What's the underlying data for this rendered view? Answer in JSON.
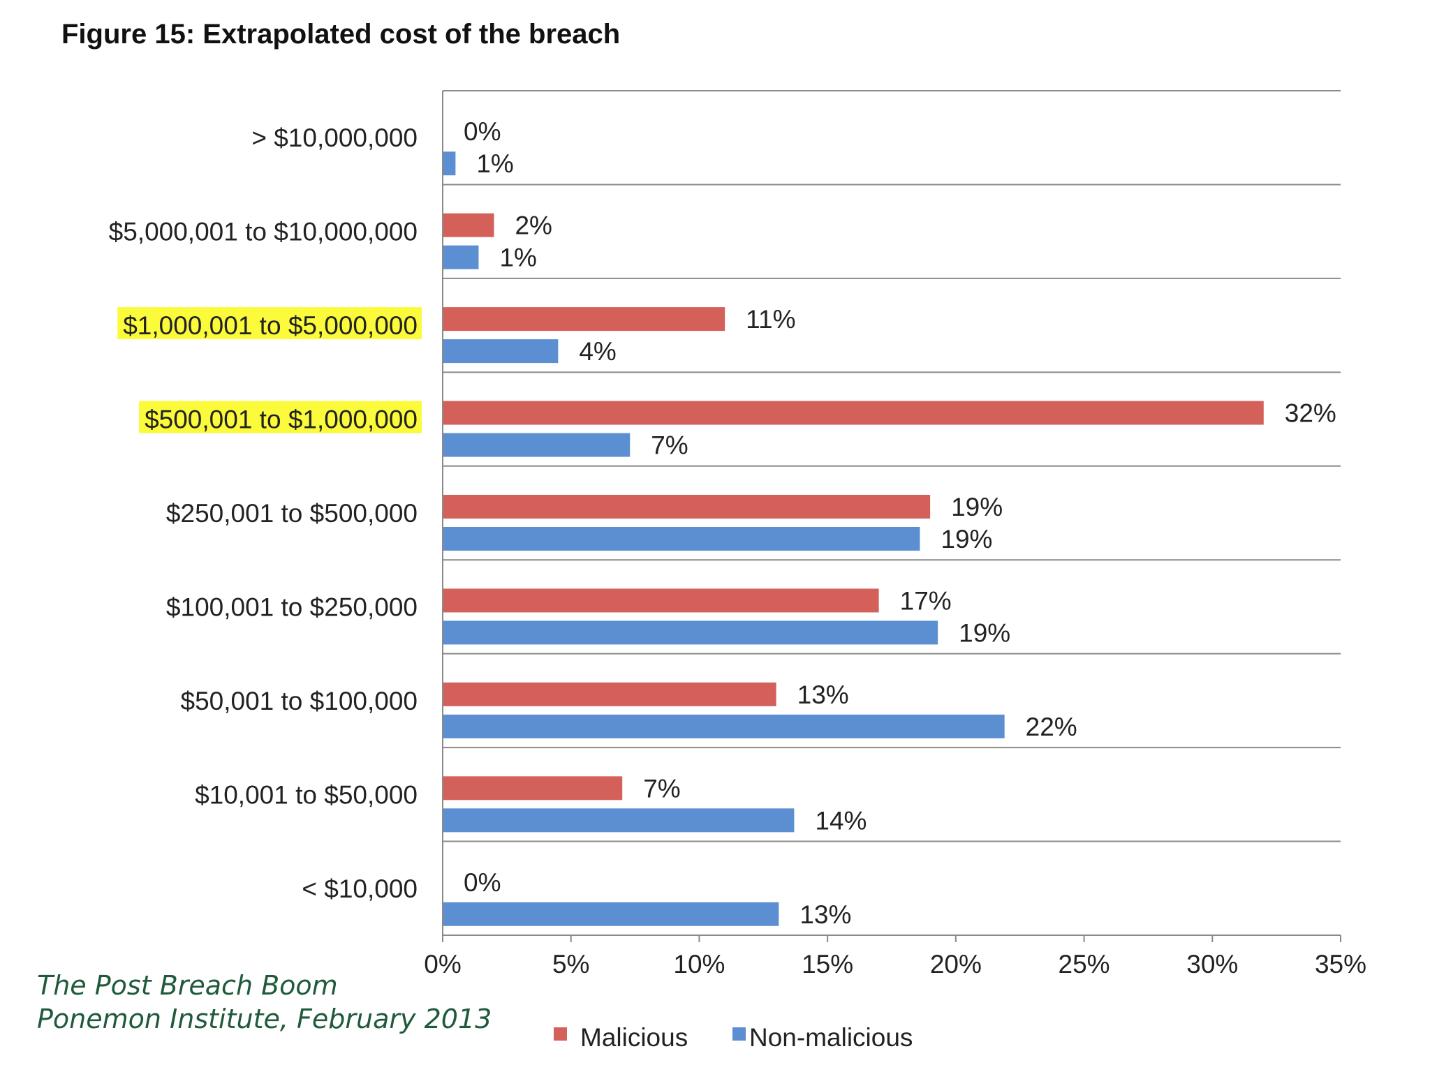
{
  "chart_data": {
    "type": "bar",
    "orientation": "horizontal",
    "title": "Figure 15: Extrapolated cost of the breach",
    "categories": [
      "> $10,000,000",
      "$5,000,001 to $10,000,000",
      "$1,000,001 to $5,000,000",
      "$500,001 to $1,000,000",
      "$250,001 to $500,000",
      "$100,001 to $250,000",
      "$50,001 to $100,000",
      "$10,001 to $50,000",
      "< $10,000"
    ],
    "highlighted_categories": [
      "$1,000,001 to $5,000,000",
      "$500,001 to $1,000,000"
    ],
    "series": [
      {
        "name": "Malicious",
        "color": "#d4605a",
        "values": [
          0,
          2,
          11,
          32,
          19,
          17,
          13,
          7,
          0
        ],
        "labels": [
          "0%",
          "2%",
          "11%",
          "32%",
          "19%",
          "17%",
          "13%",
          "7%",
          "0%"
        ]
      },
      {
        "name": "Non-malicious",
        "color": "#5b8fd2",
        "values": [
          0.5,
          1.4,
          4.5,
          7.3,
          18.6,
          19.3,
          21.9,
          13.7,
          13.1
        ],
        "labels": [
          "1%",
          "1%",
          "4%",
          "7%",
          "19%",
          "19%",
          "22%",
          "14%",
          "13%"
        ]
      }
    ],
    "xlim": [
      0,
      35
    ],
    "x_ticks": [
      0,
      5,
      10,
      15,
      20,
      25,
      30,
      35
    ],
    "x_tick_labels": [
      "0%",
      "5%",
      "10%",
      "15%",
      "20%",
      "25%",
      "30%",
      "35%"
    ],
    "xlabel": "",
    "ylabel": "",
    "grid": "horizontal separators between categories",
    "legend_position": "bottom",
    "highlight_color": "#fbfb3c"
  },
  "source": {
    "line1": "The Post Breach Boom",
    "line2": "Ponemon Institute, February 2013"
  }
}
